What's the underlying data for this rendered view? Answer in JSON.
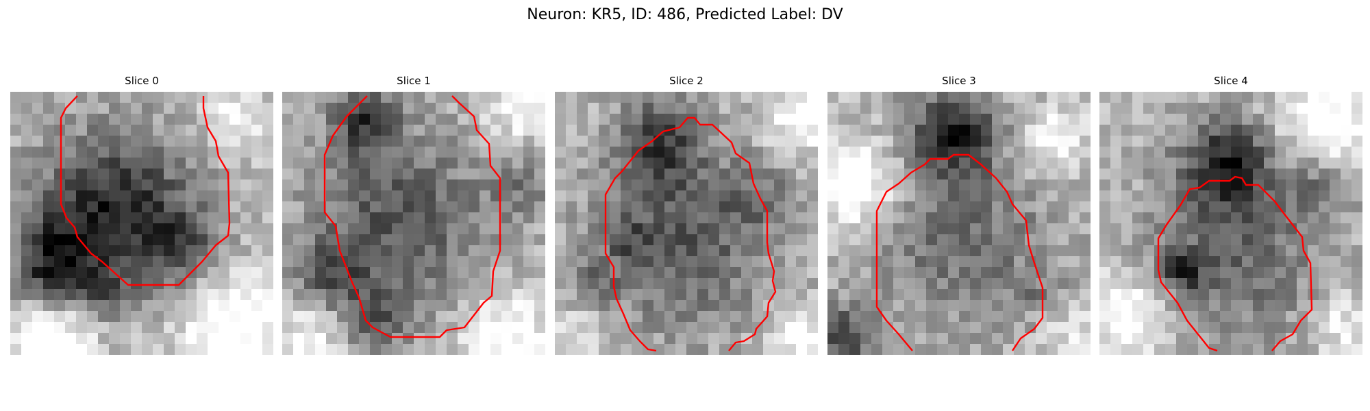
{
  "figure": {
    "title": "Neuron: KR5, ID: 486, Predicted Label: DV"
  },
  "panels": [
    {
      "title": "Slice 0",
      "seed": 11
    },
    {
      "title": "Slice 1",
      "seed": 23
    },
    {
      "title": "Slice 2",
      "seed": 37
    },
    {
      "title": "Slice 3",
      "seed": 41
    },
    {
      "title": "Slice 4",
      "seed": 59
    }
  ],
  "colors": {
    "contour": "#ff0000"
  }
}
